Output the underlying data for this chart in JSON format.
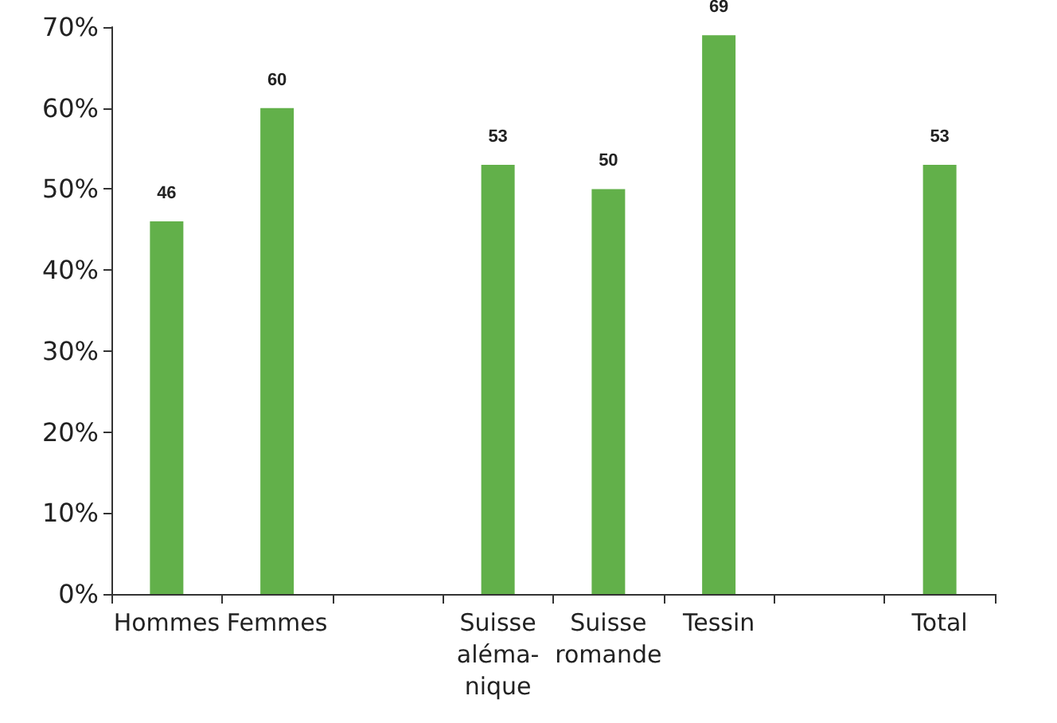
{
  "chart_data": {
    "type": "bar",
    "categories": [
      "Hommes",
      "Femmes",
      null,
      "Suisse\naléma-\nnique",
      "Suisse\nromande",
      "Tessin",
      null,
      "Total"
    ],
    "values": [
      46,
      60,
      null,
      53,
      50,
      69,
      null,
      53
    ],
    "color": "#62b04a",
    "data_labels": true,
    "ylim": [
      0,
      70
    ],
    "yticks": [
      {
        "value": 0,
        "label": "0%"
      },
      {
        "value": 10,
        "label": "10%"
      },
      {
        "value": 20,
        "label": "20%"
      },
      {
        "value": 30,
        "label": "30%"
      },
      {
        "value": 40,
        "label": "40%"
      },
      {
        "value": 50,
        "label": "50%"
      },
      {
        "value": 60,
        "label": "60%"
      },
      {
        "value": 70,
        "label": "70%"
      }
    ]
  }
}
